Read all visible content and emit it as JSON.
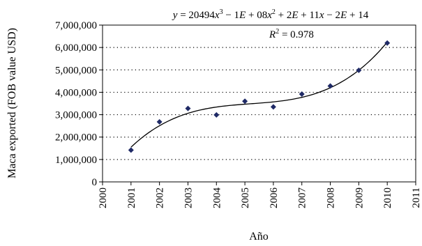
{
  "chart_data": {
    "type": "scatter",
    "title": "",
    "xlabel": "Año",
    "ylabel": "Maca exported (FOB value USD)",
    "xlim": [
      2000,
      2011
    ],
    "ylim": [
      0,
      7000000
    ],
    "x_ticks": [
      "2000",
      "2001",
      "2002",
      "2003",
      "2004",
      "2005",
      "2006",
      "2007",
      "2008",
      "2009",
      "2010",
      "2011"
    ],
    "y_ticks": [
      "0",
      "1,000,000",
      "2,000,000",
      "3,000,000",
      "4,000,000",
      "5,000,000",
      "6,000,000",
      "7,000,000"
    ],
    "grid": "horizontal dotted",
    "series": [
      {
        "x": [
          2001,
          2002,
          2003,
          2004,
          2005,
          2006,
          2007,
          2008,
          2009,
          2010
        ],
        "values": [
          1420000,
          2680000,
          3280000,
          2990000,
          3600000,
          3350000,
          3920000,
          4280000,
          4980000,
          6200000
        ],
        "marker": "diamond",
        "color": "#1f2a66"
      }
    ],
    "trendline": {
      "type": "polynomial (order 3)",
      "color": "#000000",
      "equation_parts": [
        "y",
        " = 20494",
        "x",
        "3",
        " − 1",
        "E",
        " + 08",
        "x",
        "2",
        " + 2",
        "E",
        " + 11",
        "x",
        " − 2",
        "E",
        " + 14"
      ],
      "r2_parts": [
        "R",
        "2",
        " = 0.978"
      ]
    }
  }
}
